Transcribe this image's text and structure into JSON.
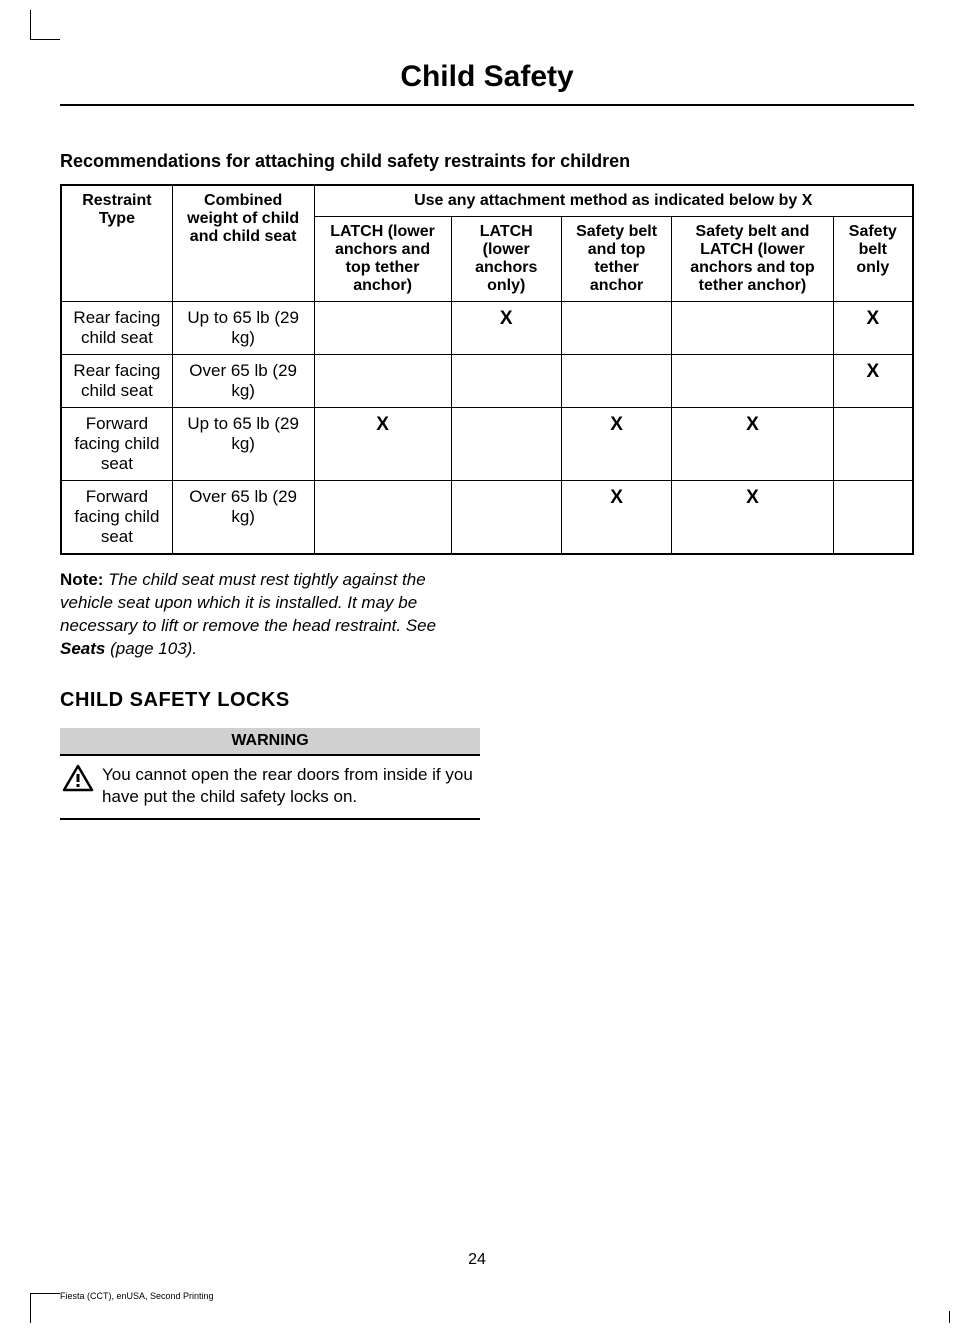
{
  "page": {
    "title": "Child Safety",
    "number": "24",
    "footer": "Fiesta (CCT), enUSA, Second Printing"
  },
  "recommendations": {
    "heading": "Recommendations for attaching child safety restraints for children",
    "table": {
      "headers": {
        "restraint_type": "Restraint Type",
        "combined_weight": "Combined weight of child and child seat",
        "attachment_method": "Use any attachment method as indicated below by X",
        "latch_all": "LATCH (lower anchors and top tether anchor)",
        "latch_lower": "LATCH (lower anchors only)",
        "belt_tether": "Safety belt and top tether anchor",
        "belt_latch": "Safety belt and LATCH (lower anchors and top tether anchor)",
        "belt_only": "Safety belt only"
      },
      "rows": [
        {
          "restraint": "Rear facing child seat",
          "weight": "Up to 65 lb (29 kg)",
          "latch_all": "",
          "latch_lower": "X",
          "belt_tether": "",
          "belt_latch": "",
          "belt_only": "X"
        },
        {
          "restraint": "Rear facing child seat",
          "weight": "Over 65 lb (29 kg)",
          "latch_all": "",
          "latch_lower": "",
          "belt_tether": "",
          "belt_latch": "",
          "belt_only": "X"
        },
        {
          "restraint": "Forward facing child seat",
          "weight": "Up to 65 lb (29 kg)",
          "latch_all": "X",
          "latch_lower": "",
          "belt_tether": "X",
          "belt_latch": "X",
          "belt_only": ""
        },
        {
          "restraint": "Forward facing child seat",
          "weight": "Over 65 lb (29 kg)",
          "latch_all": "",
          "latch_lower": "",
          "belt_tether": "X",
          "belt_latch": "X",
          "belt_only": ""
        }
      ]
    }
  },
  "note": {
    "label": "Note:",
    "text_before": " The child seat must rest tightly against the vehicle seat upon which it is installed. It may be necessary to lift or remove the head restraint.  See ",
    "seats_ref": "Seats",
    "text_after": " (page 103)."
  },
  "child_safety_locks": {
    "heading": "CHILD SAFETY LOCKS",
    "warning": {
      "header": "WARNING",
      "text": "You cannot open the rear doors from inside if you have put the child safety locks on."
    }
  },
  "styles": {
    "x_mark": "X",
    "colors": {
      "background": "#ffffff",
      "text": "#000000",
      "border": "#000000",
      "warning_bg": "#d0d0d0"
    },
    "fonts": {
      "title_size": 30,
      "heading_size": 18,
      "body_size": 17,
      "table_header_size": 16
    }
  }
}
